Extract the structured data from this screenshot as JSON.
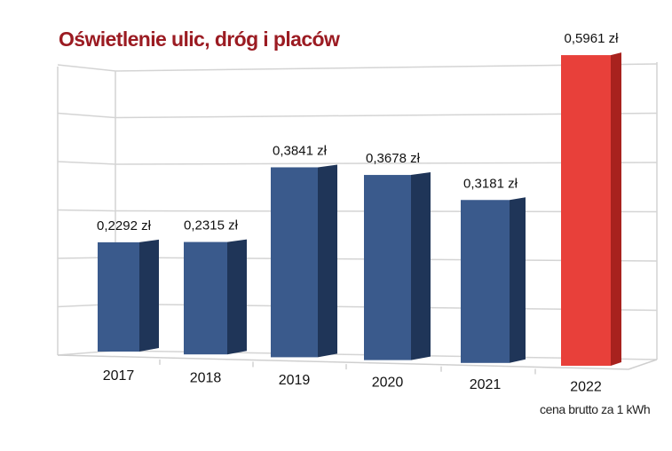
{
  "chart_data": {
    "type": "bar",
    "title": "Oświetlenie ulic, dróg i placów",
    "categories": [
      "2017",
      "2018",
      "2019",
      "2020",
      "2021",
      "2022"
    ],
    "values": [
      0.2292,
      0.2315,
      0.3841,
      0.3678,
      0.3181,
      0.5961
    ],
    "data_labels": [
      "0,2292 zł",
      "0,2315 zł",
      "0,3841 zł",
      "0,3678 zł",
      "0,3181 zł",
      "0,5961 zł"
    ],
    "xlabel": "cena brutto za 1 kWh",
    "ylabel": "",
    "ylim": [
      0,
      0.6
    ],
    "grid": true,
    "colors": [
      "#3a5a8c",
      "#3a5a8c",
      "#3a5a8c",
      "#3a5a8c",
      "#3a5a8c",
      "#e8403a"
    ],
    "side_colors": [
      "#1f3558",
      "#1f3558",
      "#1f3558",
      "#1f3558",
      "#1f3558",
      "#a8221e"
    ]
  }
}
